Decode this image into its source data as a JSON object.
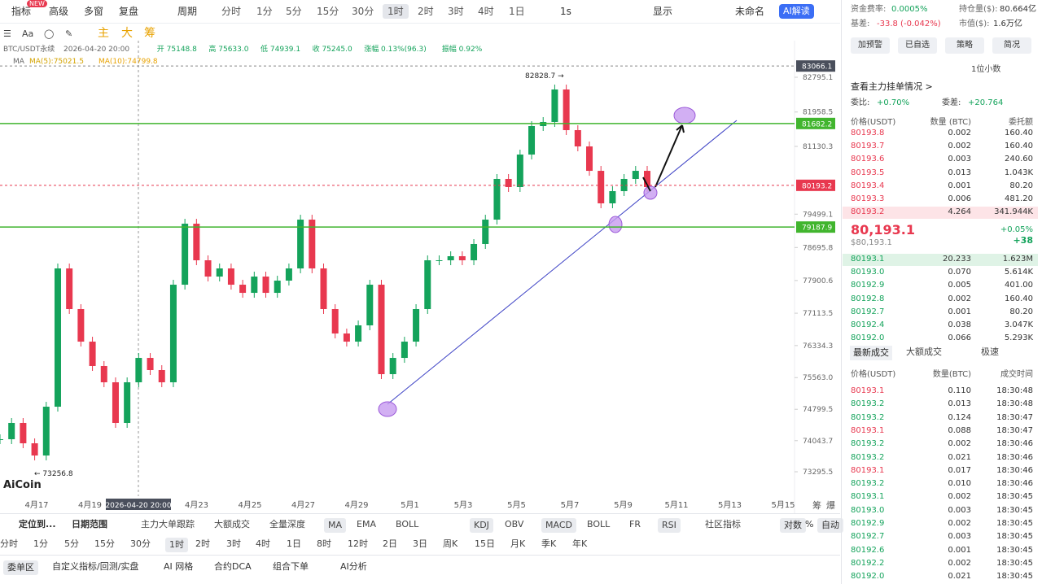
{
  "top_toolbar": {
    "new_badge": "NEW",
    "items": [
      "指标",
      "高级",
      "多窗",
      "复盘",
      "周期",
      "分时",
      "1分",
      "5分",
      "15分",
      "30分",
      "1时",
      "2时",
      "3时",
      "4时",
      "1日",
      "1s",
      "显示",
      "未命名"
    ],
    "active_index": 10,
    "ai_button": "AI解读"
  },
  "draw_toolbar": {
    "items": [
      "主",
      "大",
      "筹"
    ]
  },
  "chart": {
    "info_items": [
      "BTC/USDT永续",
      "2026-04-20 20:00",
      "开 75148.8",
      "高 75633.0",
      "低 74939.1",
      "收 75245.0",
      "涨幅 0.13%(96.3)",
      "振幅 0.92%"
    ],
    "ma_label": "MA",
    "ma_items": [
      "MA(5):75021.5",
      "MA(10):74799.8"
    ],
    "ylim": [
      72903.8,
      83186.8
    ],
    "yticks": [
      82795.1,
      81958.5,
      81130.3,
      79499.1,
      78695.8,
      77900.6,
      77113.5,
      76334.3,
      {
        "value": 75563.0,
        "label": "75563.0"
      },
      74799.5,
      74043.7,
      73295.5
    ],
    "price_tags": [
      {
        "value": 83066.1,
        "color": "#4a4f5c"
      },
      {
        "value": 81682.2,
        "color": "#41b52e"
      },
      {
        "value": 80193.2,
        "color": "#e8384f"
      },
      {
        "value": 79187.9,
        "color": "#41b52e"
      }
    ],
    "up_color": "#14a35b",
    "down_color": "#e8384f",
    "closes": [
      74079,
      74471,
      73981,
      73687,
      74862,
      78192,
      77213,
      76429,
      75842,
      75450,
      74471,
      75450,
      76037,
      75744,
      75450,
      77800,
      79269,
      78388,
      77996,
      78192,
      77800,
      77604,
      77996,
      77604,
      77898,
      78192,
      79367,
      78192,
      77213,
      76625,
      76429,
      76821,
      77800,
      75646,
      76037,
      76429,
      77213,
      78388,
      78388,
      78486,
      78388,
      78780,
      79367,
      80347,
      80151,
      80934,
      81620,
      81718,
      82501,
      81522,
      81130,
      80542,
      79759,
      80053,
      80347,
      80542,
      80151
    ],
    "x_labels": [
      "4月17",
      "4月19",
      null,
      "4月23",
      "4月25",
      "4月27",
      "4月29",
      "5月1",
      "5月3",
      "5月5",
      "5月7",
      "5月9",
      "5月11",
      "5月13",
      "5月15"
    ],
    "crosshair_label": "2026-04-20 20:00",
    "high_marker": "82828.7 →",
    "low_marker": "← 73256.8",
    "corner_items": [
      "筹",
      "爆"
    ],
    "logo": "AiCoin"
  },
  "indicator_bar": {
    "left": [
      "定位到...",
      "日期范围"
    ],
    "items": [
      "主力大单跟踪",
      "大额成交",
      "全量深度",
      "MA",
      "EMA",
      "BOLL",
      "KDJ",
      "OBV",
      "MACD",
      "BOLL",
      "FR",
      "RSI",
      "社区指标"
    ],
    "active": [
      3,
      6,
      8,
      11
    ],
    "right": [
      "对数",
      "%",
      "自动"
    ]
  },
  "period_bar": {
    "items": [
      "分时",
      "1分",
      "5分",
      "15分",
      "30分",
      "1时",
      "2时",
      "3时",
      "4时",
      "1日",
      "8时",
      "12时",
      "2日",
      "3日",
      "周K",
      "15日",
      "月K",
      "季K",
      "年K"
    ],
    "active_index": 5
  },
  "panel_bar": {
    "items": [
      "委单区",
      "自定义指标/回测/实盘",
      "AI 网格",
      "合约DCA",
      "组合下单",
      "AI分析"
    ]
  },
  "market": {
    "funding_label": "资金费率:",
    "funding": "0.0005%",
    "oi_label": "持仓量($):",
    "oi": "80.664亿",
    "basis_label": "基差:",
    "basis": "-33.8 (-0.042%)",
    "cap_label": "市值($):",
    "cap": "1.6万亿"
  },
  "buttons": [
    "加预警",
    "已自选",
    "策略",
    "简况"
  ],
  "decimals": "1位小数",
  "orderbook": {
    "link": "查看主力挂单情况 >",
    "ratio_label": "委比:",
    "ratio": "+0.70%",
    "diff_label": "委差:",
    "diff": "+20.764",
    "headers": [
      "价格(USDT)",
      "数量 (BTC)",
      "委托额"
    ],
    "asks": [
      [
        "80193.8",
        "0.002",
        "160.40"
      ],
      [
        "80193.7",
        "0.002",
        "160.40"
      ],
      [
        "80193.6",
        "0.003",
        "240.60"
      ],
      [
        "80193.5",
        "0.013",
        "1.043K"
      ],
      [
        "80193.4",
        "0.001",
        "80.20"
      ],
      [
        "80193.3",
        "0.006",
        "481.20"
      ],
      [
        "80193.2",
        "4.264",
        "341.944K"
      ]
    ],
    "last": "80,193.1",
    "last_usd": "$80,193.1",
    "change_pct": "+0.05%",
    "change": "+38",
    "bids": [
      [
        "80193.1",
        "20.233",
        "1.623M"
      ],
      [
        "80193.0",
        "0.070",
        "5.614K"
      ],
      [
        "80192.9",
        "0.005",
        "401.00"
      ],
      [
        "80192.8",
        "0.002",
        "160.40"
      ],
      [
        "80192.7",
        "0.001",
        "80.20"
      ],
      [
        "80192.4",
        "0.038",
        "3.047K"
      ],
      [
        "80192.0",
        "0.066",
        "5.293K"
      ]
    ]
  },
  "trades": {
    "tabs": [
      "最新成交",
      "大额成交"
    ],
    "fast": "极速",
    "headers": [
      "价格(USDT)",
      "数量(BTC)",
      "成交时间"
    ],
    "rows": [
      [
        "80193.1",
        "0.110",
        "18:30:48"
      ],
      [
        "80193.2",
        "0.013",
        "18:30:48"
      ],
      [
        "80193.2",
        "0.124",
        "18:30:47"
      ],
      [
        "80193.1",
        "0.088",
        "18:30:47"
      ],
      [
        "80193.2",
        "0.002",
        "18:30:46"
      ],
      [
        "80193.2",
        "0.021",
        "18:30:46"
      ],
      [
        "80193.1",
        "0.017",
        "18:30:46"
      ],
      [
        "80193.2",
        "0.010",
        "18:30:46"
      ],
      [
        "80193.1",
        "0.002",
        "18:30:45"
      ],
      [
        "80193.0",
        "0.003",
        "18:30:45"
      ],
      [
        "80192.9",
        "0.002",
        "18:30:45"
      ],
      [
        "80192.7",
        "0.003",
        "18:30:45"
      ],
      [
        "80192.6",
        "0.001",
        "18:30:45"
      ],
      [
        "80192.2",
        "0.002",
        "18:30:45"
      ],
      [
        "80192.0",
        "0.021",
        "18:30:45"
      ]
    ],
    "colors": [
      "#e8384f",
      "#14a35b",
      "#14a35b",
      "#e8384f",
      "#14a35b",
      "#14a35b",
      "#e8384f",
      "#14a35b",
      "#14a35b",
      "#14a35b",
      "#14a35b",
      "#14a35b",
      "#14a35b",
      "#14a35b",
      "#14a35b"
    ]
  }
}
